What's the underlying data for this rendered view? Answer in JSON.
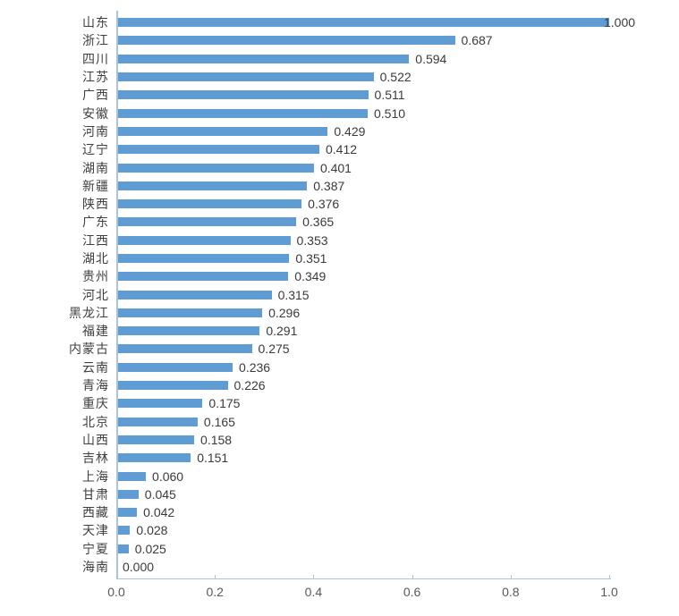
{
  "chart_data": {
    "type": "bar",
    "orientation": "horizontal",
    "title": "",
    "xlabel": "",
    "ylabel": "",
    "categories": [
      "山东",
      "浙江",
      "四川",
      "江苏",
      "广西",
      "安徽",
      "河南",
      "辽宁",
      "湖南",
      "新疆",
      "陕西",
      "广东",
      "江西",
      "湖北",
      "贵州",
      "河北",
      "黑龙江",
      "福建",
      "内蒙古",
      "云南",
      "青海",
      "重庆",
      "北京",
      "山西",
      "吉林",
      "上海",
      "甘肃",
      "西藏",
      "天津",
      "宁夏",
      "海南"
    ],
    "values": [
      1.0,
      0.687,
      0.594,
      0.522,
      0.511,
      0.51,
      0.429,
      0.412,
      0.401,
      0.387,
      0.376,
      0.365,
      0.353,
      0.351,
      0.349,
      0.315,
      0.296,
      0.291,
      0.275,
      0.236,
      0.226,
      0.175,
      0.165,
      0.158,
      0.151,
      0.06,
      0.045,
      0.042,
      0.028,
      0.025,
      0.0
    ],
    "value_labels": [
      "1.000",
      "0.687",
      "0.594",
      "0.522",
      "0.511",
      "0.510",
      "0.429",
      "0.412",
      "0.401",
      "0.387",
      "0.376",
      "0.365",
      "0.353",
      "0.351",
      "0.349",
      "0.315",
      "0.296",
      "0.291",
      "0.275",
      "0.236",
      "0.226",
      "0.175",
      "0.165",
      "0.158",
      "0.151",
      "0.060",
      "0.045",
      "0.042",
      "0.028",
      "0.025",
      "0.000"
    ],
    "xlim": [
      0.0,
      1.0
    ],
    "xticks": [
      0.0,
      0.2,
      0.4,
      0.6,
      0.8,
      1.0
    ],
    "xtick_labels": [
      "0.0",
      "0.2",
      "0.4",
      "0.6",
      "0.8",
      "1.0"
    ],
    "grid": false,
    "legend": false,
    "colors": {
      "bar": "#5E9CD3",
      "axis": "#A9C4DC",
      "category_label": "#3F3F3F",
      "value_label": "#3A3A3A",
      "tick_label": "#595959",
      "background": "#FFFFFF"
    }
  }
}
